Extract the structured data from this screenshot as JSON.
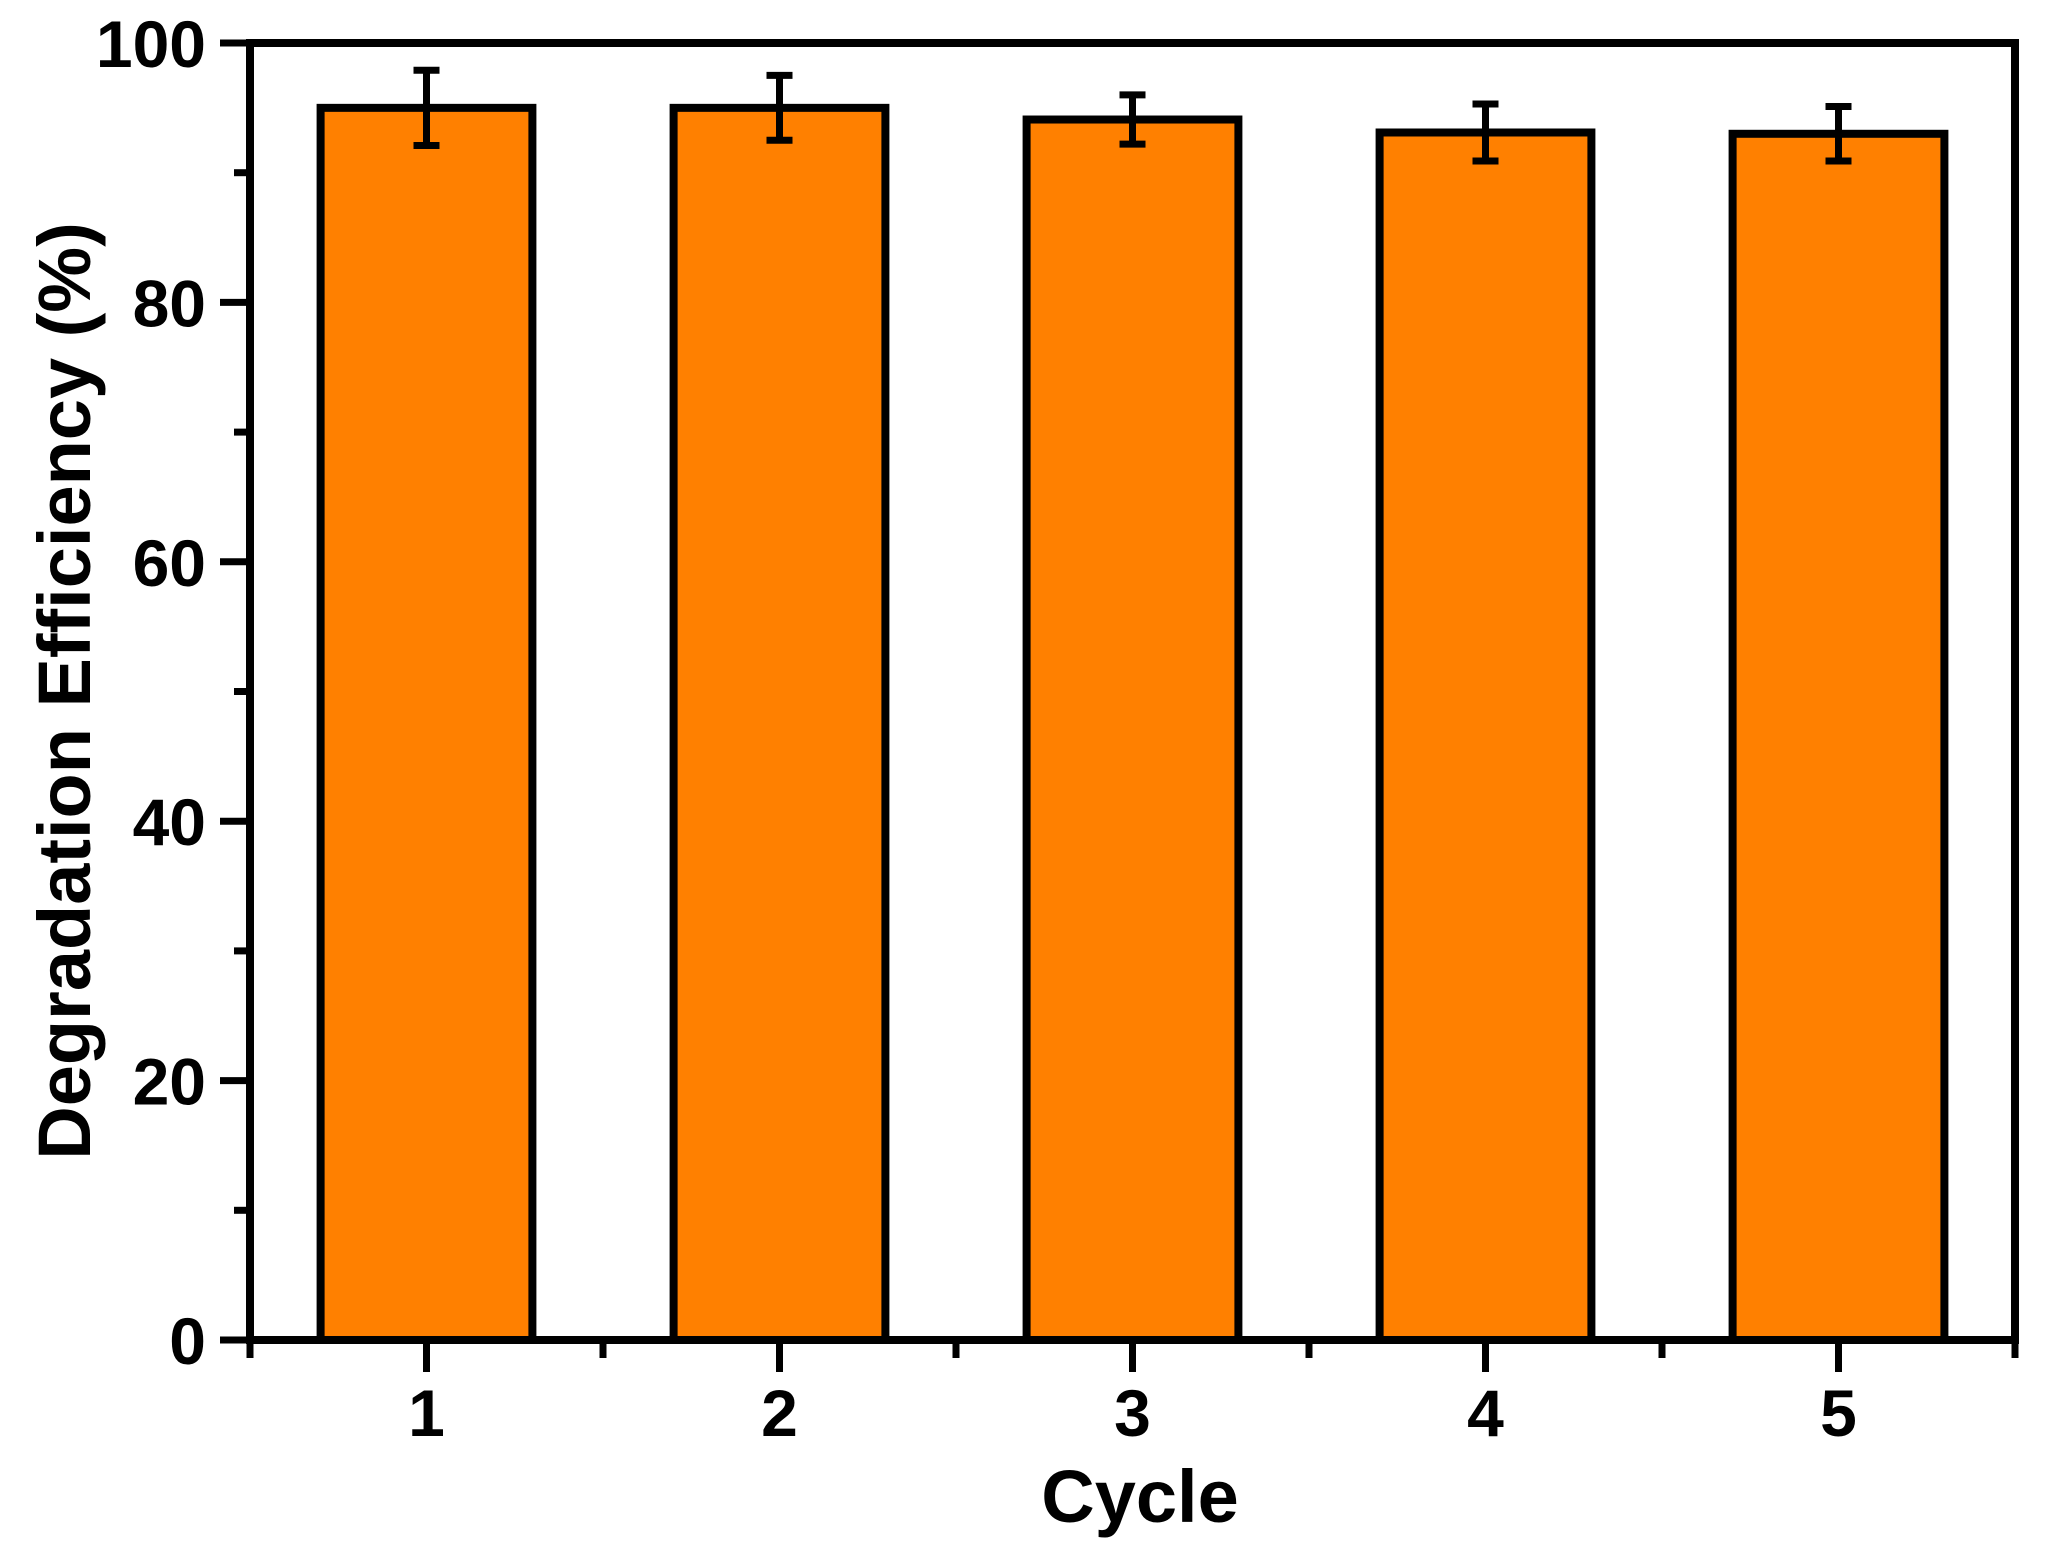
{
  "chart_data": {
    "type": "bar",
    "title": "",
    "xlabel": "Cycle",
    "ylabel": "Degradation Efficiency (%)",
    "categories": [
      "1",
      "2",
      "3",
      "4",
      "5"
    ],
    "series": [
      {
        "name": "Degradation Efficiency",
        "values": [
          95.0,
          95.0,
          94.1,
          93.1,
          93.0
        ],
        "errors": [
          2.9,
          2.5,
          1.9,
          2.2,
          2.1
        ]
      }
    ],
    "ylim": [
      0,
      100
    ],
    "yticks": [
      0,
      20,
      40,
      60,
      80,
      100
    ],
    "y_minor_interval": 10,
    "x_minor_ticks_at_boundaries": true,
    "error_bars": "both",
    "grid": false,
    "legend_position": "none",
    "colors": {
      "bar_fill": "#FF8000",
      "bar_edge": "#000000",
      "axis": "#000000",
      "text": "#000000",
      "background": "#FFFFFF"
    }
  }
}
